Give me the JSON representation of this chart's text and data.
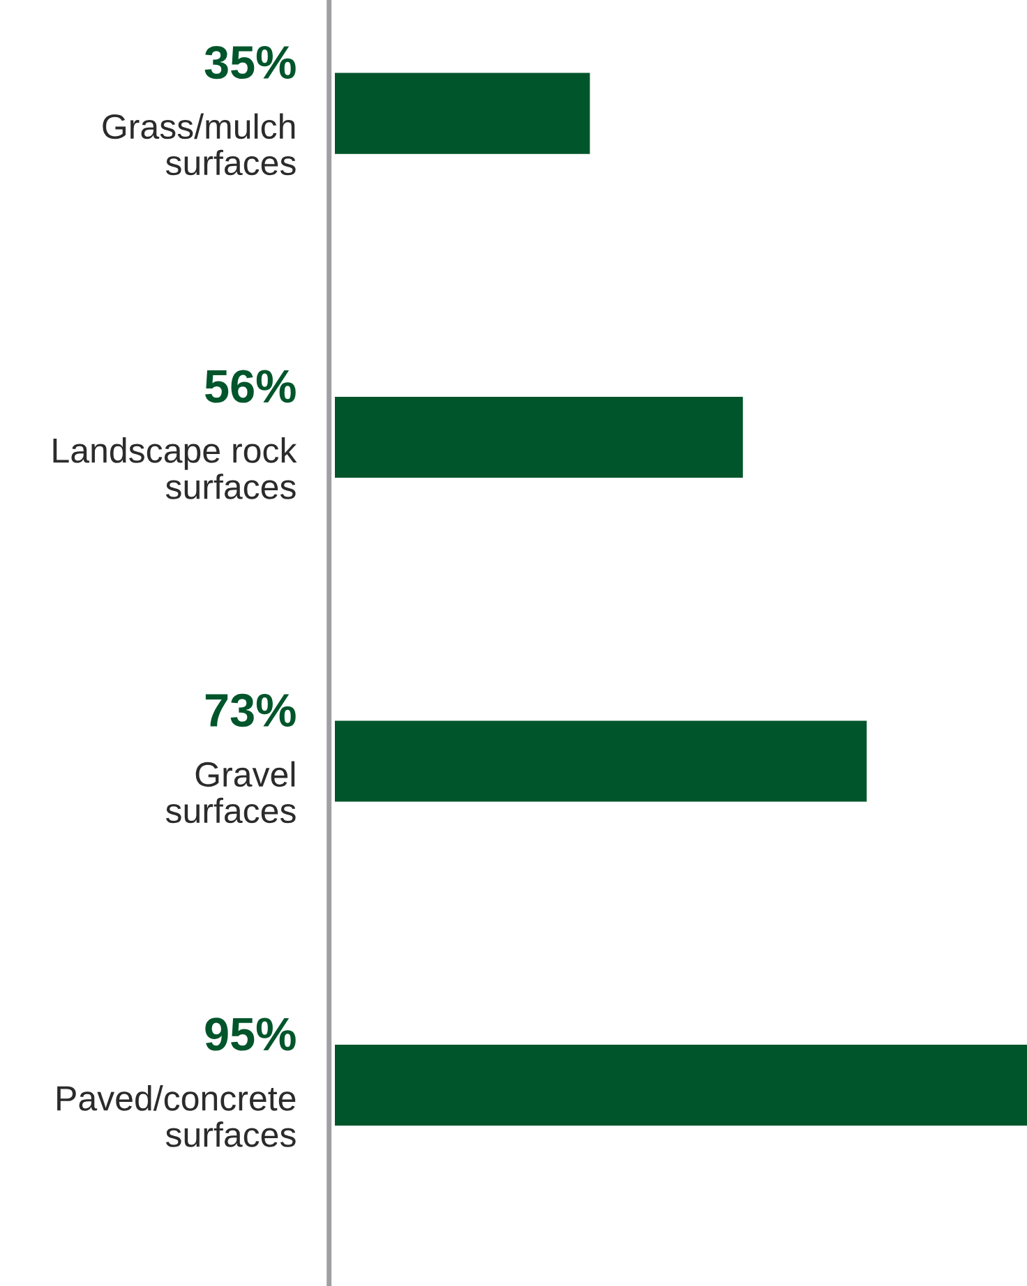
{
  "chart_data": {
    "type": "bar",
    "orientation": "horizontal",
    "categories": [
      "Grass/mulch surfaces",
      "Landscape rock surfaces",
      "Gravel surfaces",
      "Paved/concrete surfaces"
    ],
    "values": [
      35,
      56,
      73,
      95
    ],
    "value_labels": [
      "35%",
      "56%",
      "73%",
      "95%"
    ],
    "color": "#00552b",
    "xlim": [
      0,
      95
    ]
  }
}
